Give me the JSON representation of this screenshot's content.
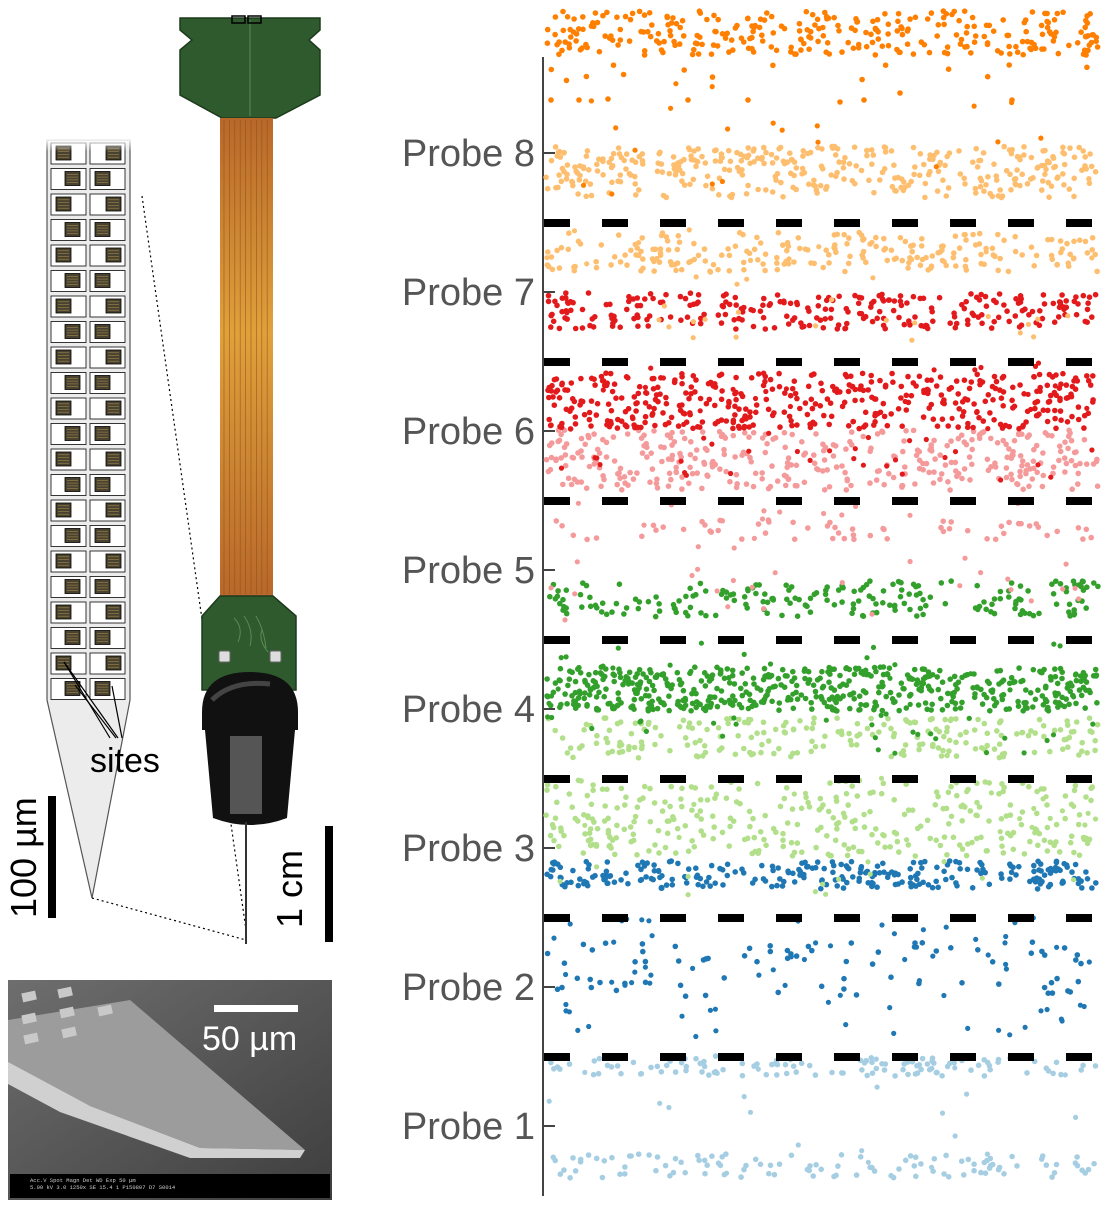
{
  "labels": {
    "sites": "sites",
    "scale_100um": "100 µm",
    "scale_1cm": "1 cm",
    "scale_50um": "50 µm"
  },
  "sem_footer": "Acc.V  Spot Magn   Det  WD  Exp                              50 µm\n5.00 kV 3.0  1250x   SE  15.4  1     P150807 D7 S0014",
  "probes": [
    {
      "label": "Probe 1",
      "color": "#a6cee3"
    },
    {
      "label": "Probe 2",
      "color": "#1f78b4"
    },
    {
      "label": "Probe 3",
      "color": "#b2df8a"
    },
    {
      "label": "Probe 4",
      "color": "#33a02c"
    },
    {
      "label": "Probe 5",
      "color": "#f59a9b"
    },
    {
      "label": "Probe 6",
      "color": "#e31a1c"
    },
    {
      "label": "Probe 7",
      "color": "#fdbf6f"
    },
    {
      "label": "Probe 8",
      "color": "#ff7f00"
    }
  ],
  "colors": {
    "pcb_green": "#2f5a2e",
    "flex_cable": "#c77a2a",
    "connector_black": "#111111"
  }
}
